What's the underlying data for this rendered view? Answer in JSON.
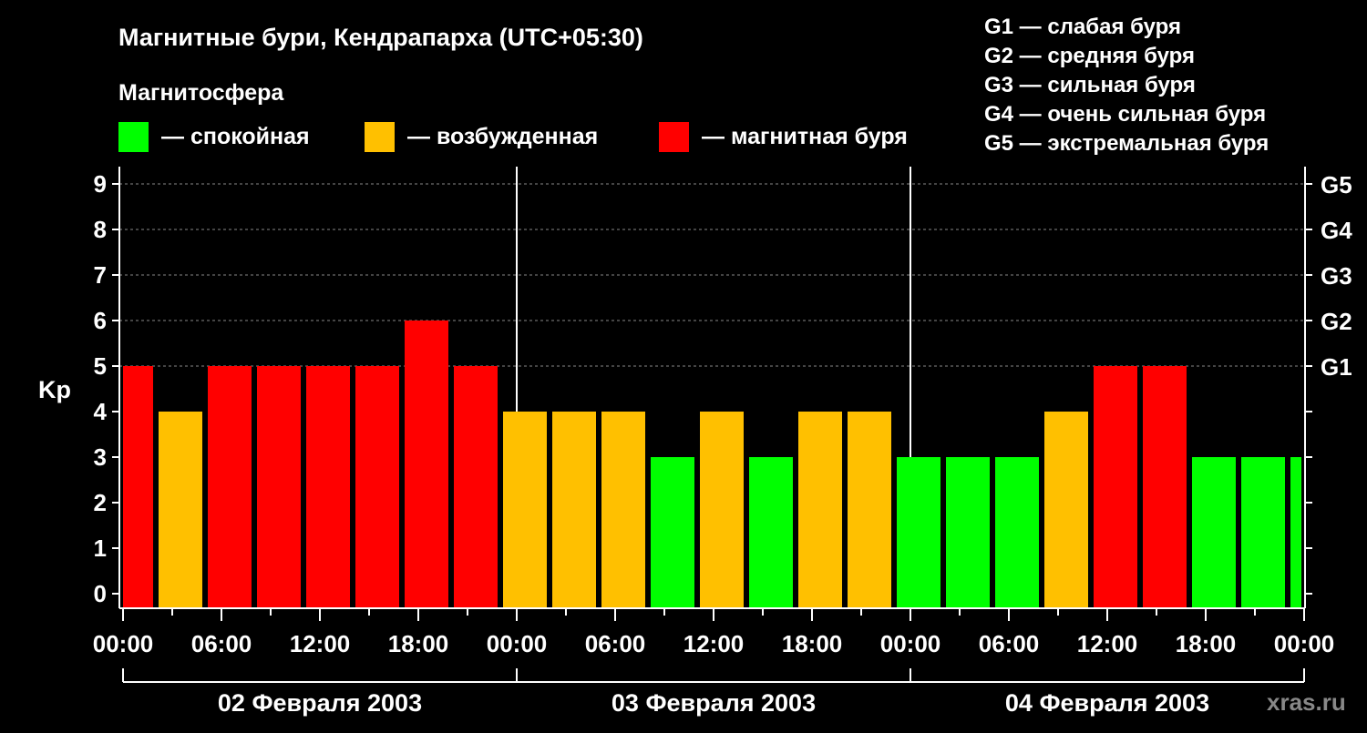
{
  "chart_data": {
    "type": "bar",
    "title": "Магнитные бури, Кендрапарха (UTC+05:30)",
    "legend_title": "Магнитосфера",
    "legend": [
      {
        "label": "— спокойная",
        "color": "#00ff00"
      },
      {
        "label": "— возбужденная",
        "color": "#ffc000"
      },
      {
        "label": "— магнитная буря",
        "color": "#ff0000"
      }
    ],
    "g_scale": [
      "G1 — слабая буря",
      "G2 — средняя буря",
      "G3 — сильная буря",
      "G4 — очень сильная буря",
      "G5 — экстремальная буря"
    ],
    "ylabel": "Kp",
    "ylim": [
      0,
      9
    ],
    "yticks": [
      "0",
      "1",
      "2",
      "3",
      "4",
      "5",
      "6",
      "7",
      "8",
      "9"
    ],
    "right_ticks": [
      {
        "value": 5,
        "label": "G1"
      },
      {
        "value": 6,
        "label": "G2"
      },
      {
        "value": 7,
        "label": "G3"
      },
      {
        "value": 8,
        "label": "G4"
      },
      {
        "value": 9,
        "label": "G5"
      }
    ],
    "xticks": [
      "00:00",
      "06:00",
      "12:00",
      "18:00",
      "00:00",
      "06:00",
      "12:00",
      "18:00",
      "00:00",
      "06:00",
      "12:00",
      "18:00",
      "00:00"
    ],
    "days": [
      "02 Февраля 2003",
      "03 Февраля 2003",
      "04 Февраля 2003"
    ],
    "values": [
      5,
      4,
      5,
      5,
      5,
      5,
      6,
      5,
      4,
      4,
      4,
      3,
      4,
      3,
      4,
      4,
      3,
      3,
      3,
      4,
      5,
      5,
      3,
      3,
      3
    ],
    "grid": true,
    "watermark": "xras.ru"
  }
}
